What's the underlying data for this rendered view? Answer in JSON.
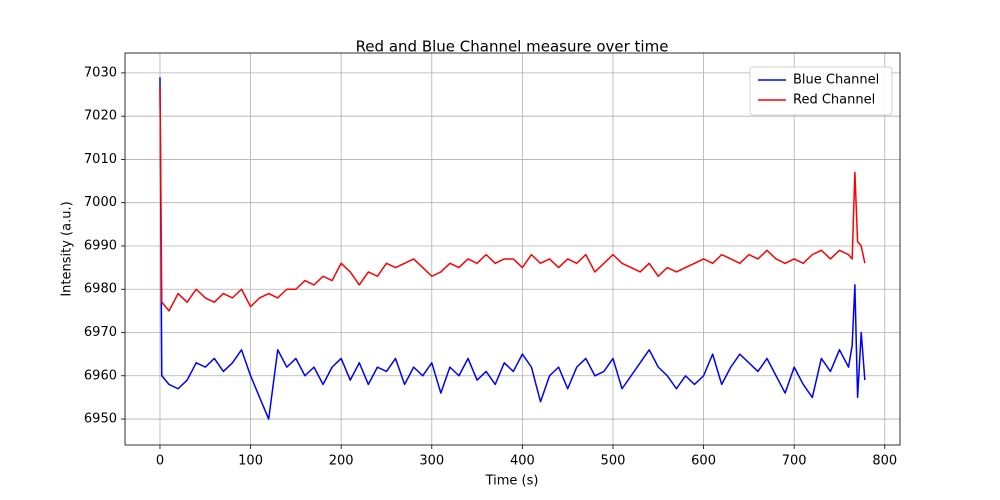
{
  "chart_data": {
    "type": "line",
    "title": "Red and Blue Channel measure over time",
    "x_label": "Time (s)",
    "y_label": "Intensity (a.u.)",
    "x": [
      0,
      2,
      10,
      20,
      30,
      40,
      50,
      60,
      70,
      80,
      90,
      100,
      110,
      120,
      130,
      140,
      150,
      160,
      170,
      180,
      190,
      200,
      210,
      220,
      230,
      240,
      250,
      260,
      270,
      280,
      290,
      300,
      310,
      320,
      330,
      340,
      350,
      360,
      370,
      380,
      390,
      400,
      410,
      420,
      430,
      440,
      450,
      460,
      470,
      480,
      490,
      500,
      510,
      520,
      530,
      540,
      550,
      560,
      570,
      580,
      590,
      600,
      610,
      620,
      630,
      640,
      650,
      660,
      670,
      680,
      690,
      700,
      710,
      720,
      730,
      740,
      750,
      760,
      764,
      767,
      770,
      774,
      778
    ],
    "series": [
      {
        "name": "Blue Channel",
        "color": "#0000ff",
        "values": [
          7029,
          6960,
          6958,
          6957,
          6959,
          6963,
          6962,
          6964,
          6961,
          6963,
          6966,
          6960,
          6955,
          6950,
          6966,
          6962,
          6964,
          6960,
          6962,
          6958,
          6962,
          6964,
          6959,
          6963,
          6958,
          6962,
          6961,
          6964,
          6958,
          6962,
          6960,
          6963,
          6956,
          6962,
          6960,
          6964,
          6959,
          6961,
          6958,
          6963,
          6961,
          6965,
          6962,
          6954,
          6960,
          6962,
          6957,
          6962,
          6964,
          6960,
          6961,
          6964,
          6957,
          6960,
          6963,
          6966,
          6962,
          6960,
          6957,
          6960,
          6958,
          6960,
          6965,
          6958,
          6962,
          6965,
          6963,
          6961,
          6964,
          6960,
          6956,
          6962,
          6958,
          6955,
          6964,
          6961,
          6966,
          6962,
          6967,
          6981,
          6955,
          6970,
          6959
        ]
      },
      {
        "name": "Red Channel",
        "color": "#ff0000",
        "values": [
          7027,
          6977,
          6975,
          6979,
          6977,
          6980,
          6978,
          6977,
          6979,
          6978,
          6980,
          6976,
          6978,
          6979,
          6978,
          6980,
          6980,
          6982,
          6981,
          6983,
          6982,
          6986,
          6984,
          6981,
          6984,
          6983,
          6986,
          6985,
          6986,
          6987,
          6985,
          6983,
          6984,
          6986,
          6985,
          6987,
          6986,
          6988,
          6986,
          6987,
          6987,
          6985,
          6988,
          6986,
          6987,
          6985,
          6987,
          6986,
          6988,
          6984,
          6986,
          6988,
          6986,
          6985,
          6984,
          6986,
          6983,
          6985,
          6984,
          6985,
          6986,
          6987,
          6986,
          6988,
          6987,
          6986,
          6988,
          6987,
          6989,
          6987,
          6986,
          6987,
          6986,
          6988,
          6989,
          6987,
          6989,
          6988,
          6987,
          7007,
          6991,
          6990,
          6986
        ]
      }
    ],
    "xlim": [
      -38.6,
      816.8
    ],
    "ylim": [
      6944,
      7034.6
    ],
    "xticks": [
      0,
      100,
      200,
      300,
      400,
      500,
      600,
      700,
      800
    ],
    "yticks": [
      6950,
      6960,
      6970,
      6980,
      6990,
      7000,
      7010,
      7020,
      7030
    ],
    "grid": true,
    "legend": "upper right"
  }
}
